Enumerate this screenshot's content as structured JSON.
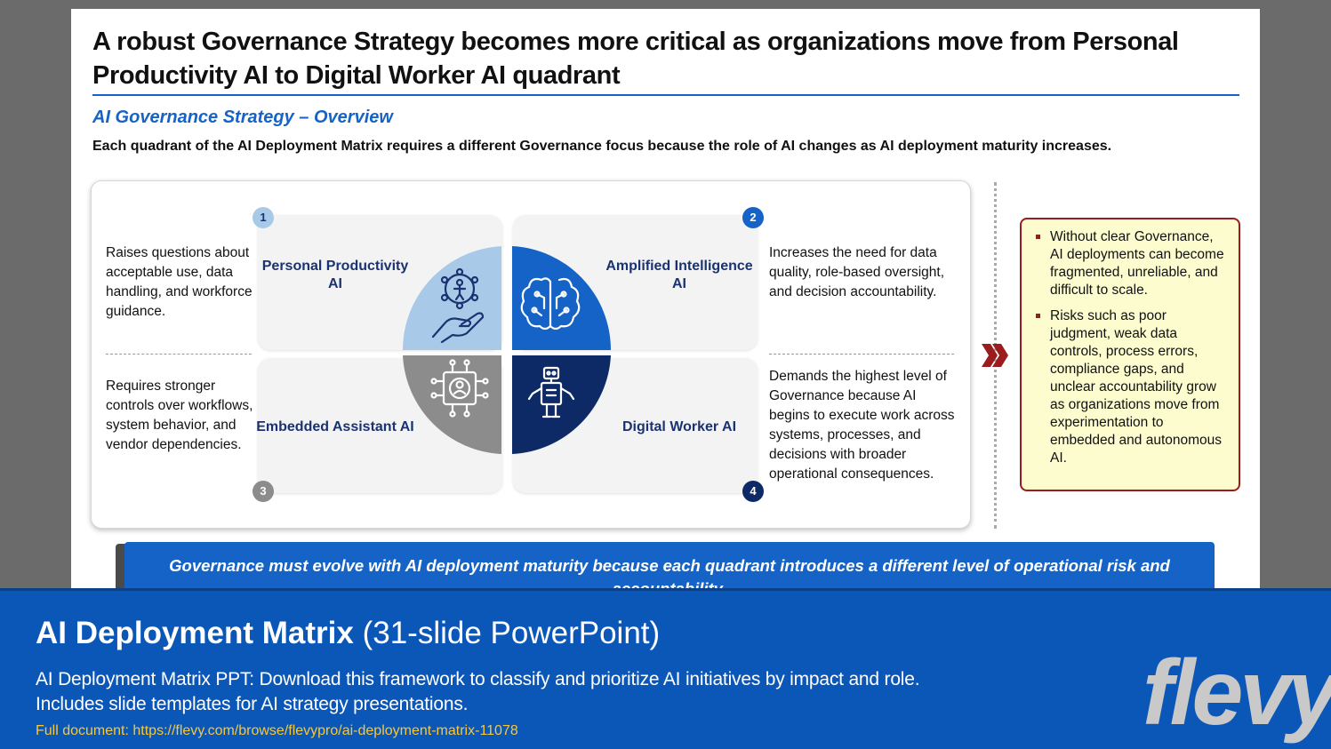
{
  "slide": {
    "title": "A robust Governance Strategy becomes more critical as organizations move from Personal Productivity AI to Digital Worker AI quadrant",
    "subtitle": "AI Governance Strategy – Overview",
    "lead": "Each quadrant of the AI Deployment Matrix requires a different Governance focus because the role of AI changes as AI deployment maturity increases.",
    "quadrants": [
      {
        "number": "1",
        "label": "Personal Productivity AI",
        "description": "Raises questions about acceptable use, data handling, and workforce guidance.",
        "color": "#a9c9e8",
        "icon": "hand-with-person-icon"
      },
      {
        "number": "2",
        "label": "Amplified Intelligence AI",
        "description": "Increases the need for data quality, role-based oversight, and decision accountability.",
        "color": "#1663c7",
        "icon": "brain-circuit-icon"
      },
      {
        "number": "3",
        "label": "Embedded Assistant AI",
        "description": "Requires stronger controls over workflows, system behavior, and vendor dependencies.",
        "color": "#8c8c8c",
        "icon": "chip-user-icon"
      },
      {
        "number": "4",
        "label": "Digital Worker AI",
        "description": "Demands the highest level of Governance because AI begins to execute work across systems, processes, and decisions with broader operational consequences.",
        "color": "#0d2a66",
        "icon": "robot-icon"
      }
    ],
    "risks": [
      "Without clear Governance, AI deployments can become fragmented, unreliable, and difficult to scale.",
      "Risks such as poor judgment, weak data controls, process errors, compliance gaps, and unclear accountability grow as organizations move from experimentation to embedded and autonomous AI."
    ],
    "banner": "Governance must evolve with AI deployment maturity because each quadrant introduces a different level of operational risk and accountability."
  },
  "footer": {
    "title_bold": "AI Deployment Matrix",
    "title_light": "(31-slide PowerPoint)",
    "description": "AI Deployment Matrix PPT: Download this framework to classify and prioritize AI initiatives by impact and role. Includes slide templates for AI strategy presentations.",
    "link": "Full document: https://flevy.com/browse/flevypro/ai-deployment-matrix-11078",
    "logo": "flevy"
  },
  "colors": {
    "accent": "#1663c7",
    "risk_border": "#9b1c1c",
    "risk_fill": "#fdfccf",
    "footer": "#0b57b8"
  }
}
